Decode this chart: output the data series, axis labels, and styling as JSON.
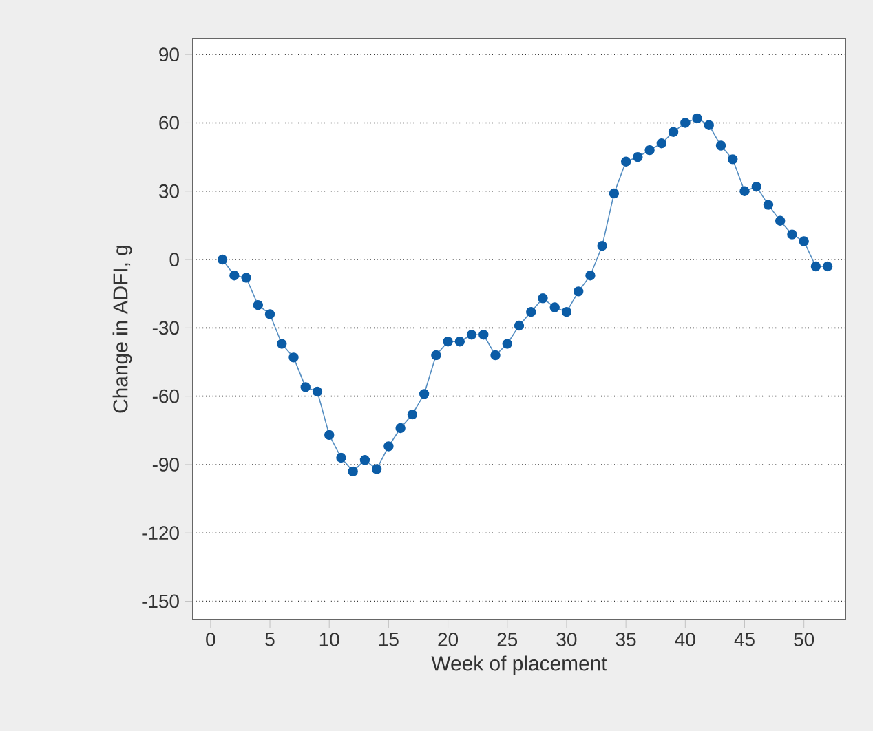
{
  "chart_data": {
    "type": "line",
    "xlabel": "Week of placement",
    "ylabel": "Change in ADFI, g",
    "x": [
      1,
      2,
      3,
      4,
      5,
      6,
      7,
      8,
      9,
      10,
      11,
      12,
      13,
      14,
      15,
      16,
      17,
      18,
      19,
      20,
      21,
      22,
      23,
      24,
      25,
      26,
      27,
      28,
      29,
      30,
      31,
      32,
      33,
      34,
      35,
      36,
      37,
      38,
      39,
      40,
      41,
      42,
      43,
      44,
      45,
      46,
      47,
      48,
      49,
      50,
      51,
      52
    ],
    "series": [
      {
        "color": "#0b5ca6",
        "values": [
          0,
          -7,
          -8,
          -20,
          -24,
          -37,
          -43,
          -56,
          -58,
          -77,
          -87,
          -93,
          -88,
          -92,
          -82,
          -74,
          -68,
          -59,
          -42,
          -36,
          -36,
          -33,
          -33,
          -42,
          -37,
          -29,
          -23,
          -17,
          -21,
          -23,
          -14,
          -7,
          6,
          29,
          43,
          45,
          48,
          51,
          56,
          60,
          62,
          59,
          50,
          44,
          30,
          32,
          24,
          17,
          11,
          8,
          -3,
          -3
        ]
      }
    ],
    "xlim": [
      -1.5,
      53.5
    ],
    "ylim": [
      -158,
      97
    ],
    "xticks": [
      0,
      5,
      10,
      15,
      20,
      25,
      30,
      35,
      40,
      45,
      50
    ],
    "yticks": [
      -150,
      -120,
      -90,
      -60,
      -30,
      0,
      30,
      60,
      90
    ],
    "grid": "y",
    "marker": "circle",
    "line_style": "solid"
  }
}
